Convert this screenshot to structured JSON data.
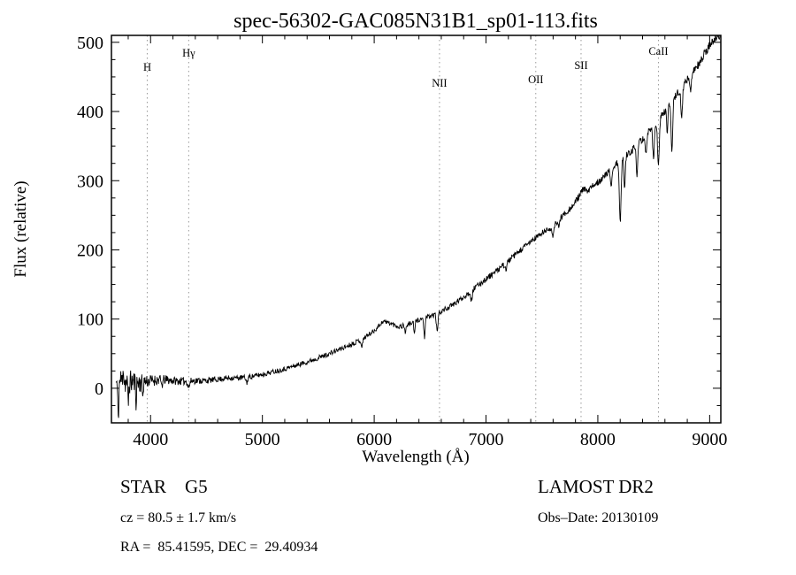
{
  "chart_data": {
    "type": "line",
    "title": "spec-56302-GAC085N31B1_sp01-113.fits",
    "xlabel": "Wavelength (Å)",
    "ylabel": "Flux (relative)",
    "xlim": [
      3650,
      9100
    ],
    "ylim": [
      -50,
      510
    ],
    "x_major_ticks": [
      4000,
      5000,
      6000,
      7000,
      8000,
      9000
    ],
    "x_minor_step": 200,
    "y_major_ticks": [
      0,
      100,
      200,
      300,
      400,
      500
    ],
    "y_minor_step": 25,
    "grid": false,
    "legend": "none",
    "line_color": "#000000",
    "marker_line_color": "#999999",
    "line_markers": [
      {
        "label": "H",
        "wavelength": 3970,
        "label_dy": 40
      },
      {
        "label": "Hγ",
        "wavelength": 4341,
        "label_dy": 24
      },
      {
        "label": "NII",
        "wavelength": 6584,
        "label_dy": 58
      },
      {
        "label": "OII",
        "wavelength": 7445,
        "label_dy": 54
      },
      {
        "label": "SII",
        "wavelength": 7850,
        "label_dy": 38
      },
      {
        "label": "CaII",
        "wavelength": 8542,
        "label_dy": 22
      }
    ],
    "data_start": 3690,
    "sample_step": 4,
    "noise_seed": 11,
    "continuum": [
      [
        3690,
        8
      ],
      [
        3740,
        12
      ],
      [
        3790,
        7
      ],
      [
        3840,
        10
      ],
      [
        3890,
        8
      ],
      [
        3950,
        10
      ],
      [
        4000,
        11
      ],
      [
        4100,
        13
      ],
      [
        4200,
        11
      ],
      [
        4300,
        10
      ],
      [
        4400,
        11
      ],
      [
        4500,
        11
      ],
      [
        4600,
        13
      ],
      [
        4700,
        15
      ],
      [
        4800,
        15
      ],
      [
        4900,
        17
      ],
      [
        5000,
        20
      ],
      [
        5100,
        24
      ],
      [
        5200,
        28
      ],
      [
        5300,
        33
      ],
      [
        5400,
        38
      ],
      [
        5500,
        44
      ],
      [
        5600,
        50
      ],
      [
        5700,
        57
      ],
      [
        5800,
        64
      ],
      [
        5900,
        72
      ],
      [
        6000,
        83
      ],
      [
        6080,
        97
      ],
      [
        6140,
        94
      ],
      [
        6220,
        89
      ],
      [
        6300,
        92
      ],
      [
        6400,
        99
      ],
      [
        6500,
        104
      ],
      [
        6600,
        111
      ],
      [
        6700,
        120
      ],
      [
        6800,
        132
      ],
      [
        6900,
        145
      ],
      [
        7000,
        158
      ],
      [
        7100,
        170
      ],
      [
        7200,
        184
      ],
      [
        7300,
        198
      ],
      [
        7400,
        212
      ],
      [
        7500,
        224
      ],
      [
        7600,
        234
      ],
      [
        7700,
        252
      ],
      [
        7780,
        264
      ],
      [
        7870,
        288
      ],
      [
        7910,
        284
      ],
      [
        7970,
        295
      ],
      [
        8030,
        302
      ],
      [
        8100,
        313
      ],
      [
        8200,
        330
      ],
      [
        8300,
        343
      ],
      [
        8400,
        360
      ],
      [
        8500,
        380
      ],
      [
        8600,
        401
      ],
      [
        8700,
        424
      ],
      [
        8800,
        446
      ],
      [
        8900,
        468
      ],
      [
        9000,
        496
      ],
      [
        9100,
        512
      ]
    ],
    "absorption_features": [
      [
        3710,
        50,
        5
      ],
      [
        3755,
        -28,
        3
      ],
      [
        3800,
        30,
        4
      ],
      [
        3870,
        25,
        4
      ],
      [
        3930,
        20,
        4
      ],
      [
        4101,
        8,
        8
      ],
      [
        4341,
        9,
        8
      ],
      [
        4861,
        8,
        8
      ],
      [
        5890,
        10,
        8
      ],
      [
        6280,
        10,
        6
      ],
      [
        6360,
        18,
        5
      ],
      [
        6450,
        28,
        6
      ],
      [
        6563,
        26,
        7
      ],
      [
        6870,
        14,
        7
      ],
      [
        7180,
        10,
        7
      ],
      [
        7600,
        16,
        8
      ],
      [
        7650,
        10,
        6
      ],
      [
        8120,
        25,
        6
      ],
      [
        8200,
        90,
        8
      ],
      [
        8240,
        45,
        6
      ],
      [
        8350,
        45,
        7
      ],
      [
        8430,
        30,
        6
      ],
      [
        8498,
        48,
        7
      ],
      [
        8542,
        68,
        8
      ],
      [
        8620,
        35,
        6
      ],
      [
        8662,
        75,
        7
      ],
      [
        8750,
        45,
        7
      ],
      [
        8830,
        25,
        6
      ]
    ],
    "noise_profile": [
      [
        3690,
        20
      ],
      [
        3900,
        16
      ],
      [
        3980,
        9
      ],
      [
        4200,
        6
      ],
      [
        4600,
        4
      ],
      [
        5200,
        3.5
      ],
      [
        6000,
        3.5
      ],
      [
        6800,
        4
      ],
      [
        7600,
        4.5
      ],
      [
        8300,
        5
      ],
      [
        9100,
        6
      ]
    ]
  },
  "annotations": {
    "class_label": "STAR    G5",
    "survey": "LAMOST DR2",
    "cz": "cz = 80.5 ± 1.7 km/s",
    "obs_date": "Obs–Date: 20130109",
    "radec": "RA =  85.41595, DEC =  29.40934"
  }
}
